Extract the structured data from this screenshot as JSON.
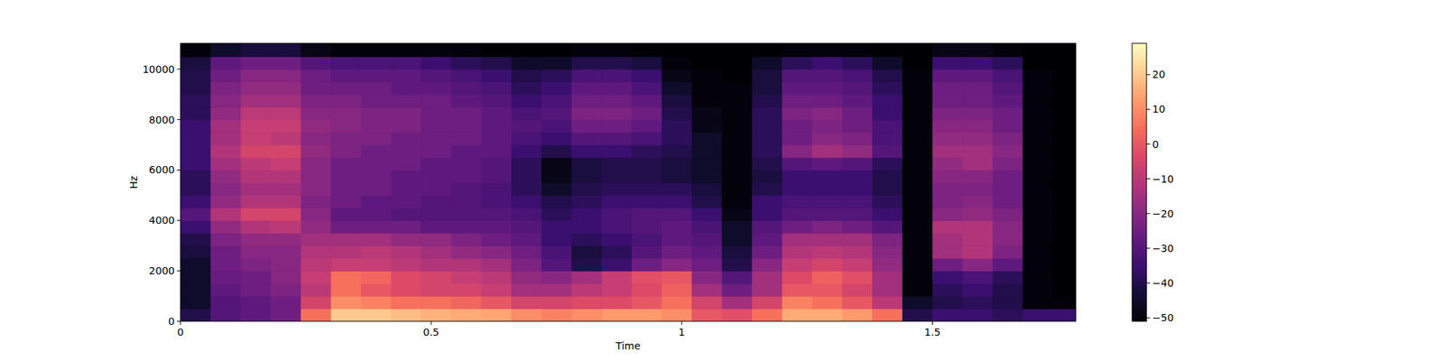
{
  "chart_data": {
    "type": "heatmap",
    "x_label": "Time",
    "y_label": "Hz",
    "xlim": [
      0,
      1.786
    ],
    "ylim": [
      0,
      11025
    ],
    "xticks": [
      0,
      0.5,
      1,
      1.5
    ],
    "yticks": [
      0,
      2000,
      4000,
      6000,
      8000,
      10000
    ],
    "x_edges": [
      0,
      0.06,
      0.12,
      0.18,
      0.24,
      0.3,
      0.36,
      0.42,
      0.48,
      0.54,
      0.6,
      0.66,
      0.72,
      0.78,
      0.84,
      0.9,
      0.96,
      1.02,
      1.08,
      1.14,
      1.2,
      1.26,
      1.32,
      1.38,
      1.44,
      1.5,
      1.56,
      1.62,
      1.68,
      1.74,
      1.8
    ],
    "y_edges": [
      0,
      500,
      1000,
      1500,
      2000,
      2500,
      3000,
      3500,
      4000,
      4500,
      5000,
      5500,
      6000,
      6500,
      7000,
      7500,
      8000,
      8500,
      9000,
      9500,
      10000,
      10500,
      11025
    ],
    "cells": [
      [
        -40,
        -30,
        -28,
        -25,
        5,
        20,
        20,
        18,
        16,
        15,
        14,
        10,
        8,
        10,
        12,
        12,
        10,
        0,
        -2,
        5,
        15,
        15,
        12,
        5,
        -40,
        -35,
        -35,
        -38,
        -35,
        -35
      ],
      [
        -45,
        -30,
        -28,
        -25,
        -5,
        10,
        8,
        5,
        5,
        3,
        0,
        -5,
        -5,
        -3,
        -3,
        0,
        5,
        -5,
        -15,
        -5,
        8,
        5,
        0,
        -10,
        -45,
        -40,
        -38,
        -40,
        -50,
        -50
      ],
      [
        -45,
        -28,
        -25,
        -22,
        -10,
        5,
        0,
        -3,
        -5,
        -5,
        -8,
        -15,
        -15,
        -10,
        -8,
        -3,
        2,
        -15,
        -25,
        -15,
        0,
        0,
        -5,
        -15,
        -50,
        -38,
        -35,
        -40,
        -50,
        -51
      ],
      [
        -45,
        -26,
        -25,
        -20,
        -8,
        5,
        3,
        -3,
        -5,
        -8,
        -10,
        -18,
        -20,
        -15,
        -8,
        -2,
        0,
        -20,
        -30,
        -15,
        -3,
        2,
        -2,
        -15,
        -50,
        -35,
        -32,
        -38,
        -50,
        -51
      ],
      [
        -45,
        -25,
        -22,
        -20,
        -10,
        -8,
        -8,
        -10,
        -12,
        -12,
        -15,
        -22,
        -30,
        -40,
        -35,
        -25,
        -20,
        -25,
        -40,
        -20,
        -8,
        -5,
        -8,
        -18,
        -50,
        -25,
        -20,
        -28,
        -50,
        -51
      ],
      [
        -42,
        -25,
        -20,
        -20,
        -12,
        -12,
        -10,
        -12,
        -15,
        -18,
        -20,
        -25,
        -32,
        -42,
        -38,
        -30,
        -25,
        -28,
        -42,
        -25,
        -12,
        -10,
        -12,
        -20,
        -50,
        -15,
        -12,
        -22,
        -50,
        -51
      ],
      [
        -40,
        -22,
        -18,
        -18,
        -15,
        -15,
        -15,
        -18,
        -18,
        -22,
        -25,
        -28,
        -35,
        -38,
        -35,
        -32,
        -28,
        -30,
        -45,
        -28,
        -15,
        -15,
        -15,
        -22,
        -50,
        -15,
        -12,
        -20,
        -50,
        -51
      ],
      [
        -35,
        -18,
        -12,
        -10,
        -18,
        -25,
        -25,
        -25,
        -28,
        -28,
        -28,
        -30,
        -35,
        -35,
        -32,
        -30,
        -28,
        -32,
        -45,
        -30,
        -25,
        -22,
        -25,
        -30,
        -50,
        -12,
        -12,
        -20,
        -50,
        -51
      ],
      [
        -30,
        -12,
        -5,
        -5,
        -20,
        -28,
        -28,
        -30,
        -30,
        -30,
        -30,
        -32,
        -38,
        -35,
        -32,
        -30,
        -30,
        -35,
        -48,
        -35,
        -30,
        -30,
        -30,
        -35,
        -50,
        -20,
        -18,
        -22,
        -50,
        -51
      ],
      [
        -35,
        -18,
        -12,
        -12,
        -22,
        -25,
        -28,
        -28,
        -30,
        -30,
        -32,
        -35,
        -40,
        -38,
        -35,
        -35,
        -35,
        -40,
        -50,
        -35,
        -32,
        -32,
        -32,
        -38,
        -50,
        -22,
        -20,
        -25,
        -50,
        -51
      ],
      [
        -38,
        -20,
        -15,
        -15,
        -20,
        -25,
        -25,
        -28,
        -28,
        -30,
        -32,
        -38,
        -45,
        -40,
        -38,
        -38,
        -38,
        -42,
        -50,
        -40,
        -35,
        -35,
        -35,
        -40,
        -50,
        -22,
        -22,
        -25,
        -50,
        -51
      ],
      [
        -38,
        -18,
        -12,
        -12,
        -20,
        -25,
        -25,
        -28,
        -28,
        -28,
        -30,
        -38,
        -48,
        -42,
        -40,
        -40,
        -42,
        -45,
        -50,
        -42,
        -35,
        -35,
        -35,
        -40,
        -50,
        -20,
        -20,
        -25,
        -50,
        -51
      ],
      [
        -35,
        -15,
        -10,
        -8,
        -20,
        -25,
        -25,
        -25,
        -28,
        -28,
        -30,
        -38,
        -48,
        -42,
        -40,
        -40,
        -42,
        -45,
        -50,
        -40,
        -30,
        -28,
        -30,
        -38,
        -50,
        -18,
        -15,
        -22,
        -50,
        -51
      ],
      [
        -35,
        -12,
        -5,
        -5,
        -18,
        -22,
        -25,
        -25,
        -25,
        -28,
        -28,
        -35,
        -40,
        -35,
        -35,
        -38,
        -40,
        -45,
        -50,
        -38,
        -20,
        -15,
        -18,
        -30,
        -50,
        -15,
        -15,
        -20,
        -50,
        -51
      ],
      [
        -35,
        -15,
        -8,
        -10,
        -20,
        -22,
        -22,
        -25,
        -25,
        -25,
        -28,
        -32,
        -35,
        -30,
        -30,
        -32,
        -38,
        -45,
        -50,
        -38,
        -25,
        -20,
        -22,
        -32,
        -50,
        -18,
        -18,
        -22,
        -50,
        -51
      ],
      [
        -35,
        -15,
        -8,
        -8,
        -18,
        -20,
        -22,
        -22,
        -25,
        -25,
        -28,
        -30,
        -32,
        -25,
        -25,
        -28,
        -38,
        -48,
        -50,
        -38,
        -25,
        -22,
        -25,
        -32,
        -50,
        -20,
        -20,
        -25,
        -50,
        -51
      ],
      [
        -38,
        -18,
        -10,
        -10,
        -20,
        -20,
        -22,
        -22,
        -25,
        -25,
        -28,
        -32,
        -30,
        -22,
        -22,
        -25,
        -40,
        -48,
        -50,
        -38,
        -22,
        -20,
        -25,
        -35,
        -50,
        -22,
        -22,
        -25,
        -50,
        -51
      ],
      [
        -38,
        -20,
        -15,
        -15,
        -22,
        -22,
        -25,
        -25,
        -25,
        -28,
        -30,
        -35,
        -32,
        -25,
        -25,
        -28,
        -42,
        -50,
        -50,
        -40,
        -25,
        -25,
        -28,
        -35,
        -50,
        -25,
        -25,
        -28,
        -50,
        -51
      ],
      [
        -40,
        -22,
        -18,
        -18,
        -25,
        -25,
        -25,
        -28,
        -28,
        -30,
        -32,
        -38,
        -35,
        -28,
        -28,
        -32,
        -45,
        -50,
        -50,
        -42,
        -28,
        -28,
        -30,
        -38,
        -50,
        -25,
        -25,
        -30,
        -50,
        -51
      ],
      [
        -40,
        -25,
        -20,
        -20,
        -25,
        -28,
        -28,
        -28,
        -30,
        -32,
        -35,
        -40,
        -38,
        -32,
        -32,
        -35,
        -48,
        -50,
        -51,
        -42,
        -30,
        -30,
        -32,
        -40,
        -50,
        -28,
        -28,
        -32,
        -50,
        -51
      ],
      [
        -42,
        -28,
        -25,
        -25,
        -30,
        -32,
        -32,
        -32,
        -35,
        -38,
        -40,
        -45,
        -45,
        -40,
        -40,
        -42,
        -50,
        -51,
        -51,
        -45,
        -38,
        -35,
        -38,
        -45,
        -51,
        -35,
        -35,
        -38,
        -51,
        -51
      ],
      [
        -50,
        -45,
        -42,
        -42,
        -48,
        -50,
        -50,
        -50,
        -50,
        -50,
        -51,
        -51,
        -51,
        -50,
        -50,
        -51,
        -51,
        -51,
        -51,
        -51,
        -50,
        -50,
        -50,
        -51,
        -51,
        -48,
        -48,
        -50,
        -51,
        -51
      ]
    ],
    "colorbar_range": [
      -51,
      29
    ],
    "colorbar_ticks": [
      20,
      10,
      0,
      {
        "value": -10,
        "label": "−10"
      },
      {
        "value": -20,
        "label": "−20"
      },
      {
        "value": -30,
        "label": "−30"
      },
      {
        "value": -40,
        "label": "−40"
      },
      {
        "value": -50,
        "label": "−50"
      }
    ]
  }
}
